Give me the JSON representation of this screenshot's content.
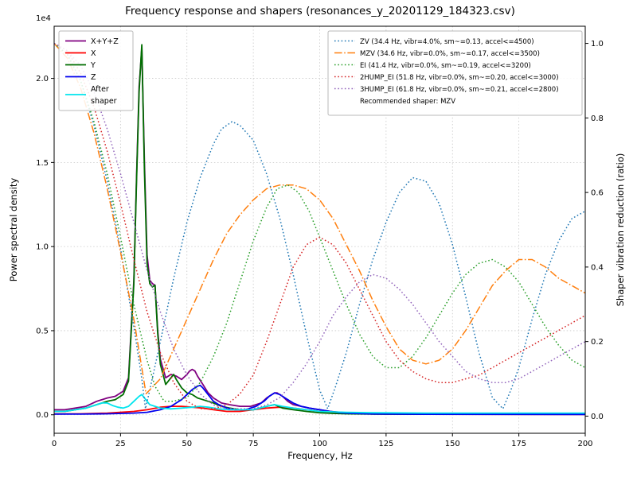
{
  "chart_data": {
    "type": "line",
    "title": "Frequency response and shapers (resonances_y_20201129_184323.csv)",
    "xlabel": "Frequency, Hz",
    "ylabel_left": "Power spectral density",
    "ylabel_right": "Shaper vibration reduction (ratio)",
    "y_left_offset_label": "1e4",
    "xlim": [
      0,
      200
    ],
    "ylim_left": [
      -0.11,
      2.31
    ],
    "ylim_right": [
      -0.046,
      1.046
    ],
    "grid": true,
    "x_ticks": [
      0,
      25,
      50,
      75,
      100,
      125,
      150,
      175,
      200
    ],
    "x_tick_labels": [
      "0",
      "25",
      "50",
      "75",
      "100",
      "125",
      "150",
      "175",
      "200"
    ],
    "y_left_ticks": [
      0.0,
      0.5,
      1.0,
      1.5,
      2.0
    ],
    "y_left_tick_labels": [
      "0.0",
      "0.5",
      "1.0",
      "1.5",
      "2.0"
    ],
    "y_right_ticks": [
      0.0,
      0.2,
      0.4,
      0.6,
      0.8,
      1.0
    ],
    "y_right_tick_labels": [
      "0.0",
      "0.2",
      "0.4",
      "0.6",
      "0.8",
      "1.0"
    ],
    "legend_right_note": "Recommended shaper: MZV",
    "recommended_shaper": "MZV",
    "series": [
      {
        "id": "xyz",
        "label": "X+Y+Z",
        "axis": "left",
        "color": "#800080",
        "dash": "solid",
        "width": 1.8,
        "x": [
          0,
          4,
          8,
          12,
          16,
          20,
          23,
          26,
          28,
          30,
          31,
          32,
          33,
          34,
          35,
          36,
          37,
          38,
          39,
          40,
          42,
          44,
          46,
          48,
          50,
          51,
          52,
          53,
          54,
          56,
          58,
          60,
          63,
          66,
          70,
          74,
          78,
          80,
          82,
          83,
          84,
          86,
          88,
          90,
          93,
          96,
          100,
          104,
          108,
          112,
          120,
          130,
          140,
          160,
          180,
          200
        ],
        "y": [
          0.03,
          0.03,
          0.04,
          0.05,
          0.08,
          0.1,
          0.11,
          0.14,
          0.22,
          0.8,
          1.4,
          1.95,
          2.18,
          1.5,
          0.95,
          0.8,
          0.78,
          0.77,
          0.5,
          0.33,
          0.22,
          0.24,
          0.23,
          0.21,
          0.24,
          0.26,
          0.27,
          0.26,
          0.23,
          0.18,
          0.13,
          0.1,
          0.07,
          0.06,
          0.05,
          0.05,
          0.07,
          0.1,
          0.12,
          0.13,
          0.13,
          0.11,
          0.08,
          0.06,
          0.05,
          0.04,
          0.03,
          0.02,
          0.015,
          0.01,
          0.008,
          0.006,
          0.005,
          0.004,
          0.004,
          0.004
        ]
      },
      {
        "id": "x",
        "label": "X",
        "axis": "left",
        "color": "#ff0000",
        "dash": "solid",
        "width": 1.8,
        "x": [
          0,
          10,
          20,
          30,
          35,
          40,
          44,
          48,
          52,
          56,
          60,
          65,
          70,
          75,
          80,
          85,
          90,
          95,
          100,
          105,
          110,
          120,
          140,
          200
        ],
        "y": [
          0.005,
          0.006,
          0.01,
          0.02,
          0.03,
          0.045,
          0.05,
          0.05,
          0.045,
          0.04,
          0.03,
          0.02,
          0.02,
          0.03,
          0.04,
          0.045,
          0.04,
          0.03,
          0.02,
          0.012,
          0.008,
          0.005,
          0.003,
          0.002
        ]
      },
      {
        "id": "y",
        "label": "Y",
        "axis": "left",
        "color": "#006e00",
        "dash": "solid",
        "width": 1.8,
        "x": [
          0,
          4,
          8,
          12,
          16,
          20,
          23,
          26,
          28,
          30,
          31,
          32,
          33,
          34,
          35,
          36,
          37,
          38,
          39,
          40,
          42,
          44,
          45,
          46,
          48,
          50,
          52,
          54,
          56,
          58,
          60,
          63,
          66,
          70,
          75,
          80,
          83,
          86,
          90,
          95,
          100,
          105,
          110,
          120,
          140,
          200
        ],
        "y": [
          0.02,
          0.02,
          0.03,
          0.04,
          0.06,
          0.08,
          0.09,
          0.12,
          0.2,
          0.78,
          1.38,
          1.92,
          2.2,
          1.45,
          0.9,
          0.78,
          0.76,
          0.77,
          0.48,
          0.3,
          0.18,
          0.22,
          0.24,
          0.21,
          0.16,
          0.13,
          0.12,
          0.1,
          0.09,
          0.08,
          0.07,
          0.05,
          0.04,
          0.03,
          0.03,
          0.05,
          0.06,
          0.04,
          0.03,
          0.02,
          0.012,
          0.008,
          0.006,
          0.004,
          0.003,
          0.003
        ]
      },
      {
        "id": "z",
        "label": "Z",
        "axis": "left",
        "color": "#0000ee",
        "dash": "solid",
        "width": 1.8,
        "x": [
          0,
          10,
          20,
          30,
          35,
          40,
          44,
          46,
          48,
          50,
          52,
          54,
          55,
          56,
          58,
          60,
          62,
          65,
          68,
          72,
          76,
          79,
          81,
          83,
          85,
          87,
          90,
          93,
          96,
          100,
          104,
          108,
          112,
          120,
          140,
          200
        ],
        "y": [
          0.004,
          0.004,
          0.006,
          0.01,
          0.015,
          0.03,
          0.05,
          0.07,
          0.09,
          0.12,
          0.15,
          0.17,
          0.175,
          0.16,
          0.12,
          0.08,
          0.06,
          0.04,
          0.03,
          0.03,
          0.05,
          0.08,
          0.11,
          0.13,
          0.12,
          0.1,
          0.07,
          0.05,
          0.04,
          0.03,
          0.02,
          0.012,
          0.008,
          0.005,
          0.003,
          0.002
        ]
      },
      {
        "id": "after-shaper",
        "label": "After\nshaper",
        "axis": "left",
        "color": "#00e5ee",
        "dash": "solid",
        "width": 1.8,
        "x": [
          0,
          4,
          8,
          12,
          15,
          18,
          20,
          22,
          24,
          26,
          28,
          30,
          32,
          33,
          34,
          36,
          38,
          40,
          44,
          48,
          52,
          55,
          58,
          62,
          66,
          70,
          75,
          80,
          83,
          86,
          90,
          95,
          100,
          110,
          120,
          140,
          160,
          180,
          200
        ],
        "y": [
          0.02,
          0.02,
          0.03,
          0.04,
          0.055,
          0.07,
          0.07,
          0.055,
          0.045,
          0.04,
          0.05,
          0.08,
          0.11,
          0.12,
          0.1,
          0.06,
          0.05,
          0.04,
          0.035,
          0.04,
          0.045,
          0.05,
          0.045,
          0.035,
          0.03,
          0.03,
          0.03,
          0.05,
          0.06,
          0.05,
          0.04,
          0.03,
          0.02,
          0.015,
          0.012,
          0.01,
          0.01,
          0.01,
          0.01
        ]
      },
      {
        "id": "zv",
        "label": "ZV (34.4 Hz, vibr=4.0%, sm~=0.13, accel<=4500)",
        "axis": "right",
        "color": "#1f77b4",
        "dash": "dotted",
        "width": 1.5,
        "x": [
          0,
          5,
          10,
          15,
          20,
          25,
          30,
          33,
          34.4,
          36,
          40,
          45,
          50,
          55,
          60,
          63,
          67,
          70,
          75,
          80,
          85,
          90,
          95,
          100,
          103,
          106,
          110,
          115,
          120,
          125,
          130,
          135,
          140,
          145,
          150,
          155,
          160,
          165,
          169,
          172,
          175,
          180,
          185,
          190,
          195,
          200
        ],
        "y": [
          1.0,
          0.97,
          0.9,
          0.78,
          0.63,
          0.45,
          0.24,
          0.1,
          0.02,
          0.07,
          0.2,
          0.37,
          0.52,
          0.64,
          0.73,
          0.77,
          0.79,
          0.78,
          0.74,
          0.65,
          0.53,
          0.38,
          0.22,
          0.07,
          0.02,
          0.08,
          0.17,
          0.3,
          0.42,
          0.52,
          0.6,
          0.64,
          0.63,
          0.57,
          0.46,
          0.32,
          0.17,
          0.05,
          0.02,
          0.07,
          0.13,
          0.26,
          0.38,
          0.47,
          0.53,
          0.55
        ]
      },
      {
        "id": "mzv",
        "label": "MZV (34.6 Hz, vibr=0.0%, sm~=0.17, accel<=3500)",
        "axis": "right",
        "color": "#ff7f0e",
        "dash": "dashdot",
        "width": 1.5,
        "x": [
          0,
          5,
          10,
          15,
          20,
          25,
          30,
          34.6,
          40,
          45,
          50,
          55,
          60,
          65,
          70,
          75,
          80,
          85,
          90,
          95,
          100,
          105,
          110,
          115,
          120,
          125,
          130,
          135,
          140,
          145,
          150,
          155,
          160,
          165,
          170,
          175,
          180,
          185,
          190,
          195,
          200
        ],
        "y": [
          1.0,
          0.96,
          0.88,
          0.76,
          0.61,
          0.44,
          0.26,
          0.06,
          0.1,
          0.18,
          0.26,
          0.34,
          0.42,
          0.49,
          0.54,
          0.58,
          0.61,
          0.62,
          0.62,
          0.61,
          0.58,
          0.53,
          0.46,
          0.39,
          0.31,
          0.24,
          0.18,
          0.15,
          0.14,
          0.15,
          0.18,
          0.23,
          0.29,
          0.35,
          0.39,
          0.42,
          0.42,
          0.4,
          0.37,
          0.35,
          0.33
        ]
      },
      {
        "id": "ei",
        "label": "EI (41.4 Hz, vibr=0.0%, sm~=0.19, accel<=3200)",
        "axis": "right",
        "color": "#2ca02c",
        "dash": "dotted",
        "width": 1.5,
        "x": [
          0,
          5,
          10,
          15,
          20,
          25,
          30,
          35,
          38,
          41.4,
          45,
          50,
          55,
          60,
          65,
          70,
          75,
          80,
          84,
          88,
          92,
          96,
          100,
          105,
          110,
          115,
          120,
          125,
          130,
          135,
          140,
          145,
          150,
          155,
          160,
          165,
          170,
          175,
          180,
          185,
          190,
          195,
          200
        ],
        "y": [
          1.0,
          0.97,
          0.9,
          0.79,
          0.65,
          0.48,
          0.3,
          0.15,
          0.08,
          0.04,
          0.04,
          0.05,
          0.09,
          0.16,
          0.25,
          0.36,
          0.47,
          0.56,
          0.61,
          0.62,
          0.6,
          0.55,
          0.48,
          0.39,
          0.3,
          0.22,
          0.16,
          0.13,
          0.13,
          0.16,
          0.21,
          0.27,
          0.33,
          0.38,
          0.41,
          0.42,
          0.4,
          0.36,
          0.3,
          0.24,
          0.19,
          0.15,
          0.13
        ]
      },
      {
        "id": "2hump-ei",
        "label": "2HUMP_EI (51.8 Hz, vibr=0.0%, sm~=0.20, accel<=3000)",
        "axis": "right",
        "color": "#d62728",
        "dash": "dotted",
        "width": 1.5,
        "x": [
          0,
          5,
          10,
          15,
          20,
          25,
          30,
          35,
          40,
          45,
          50,
          55,
          60,
          65,
          70,
          75,
          80,
          85,
          90,
          95,
          100,
          105,
          110,
          115,
          120,
          125,
          130,
          135,
          140,
          145,
          150,
          155,
          160,
          165,
          170,
          175,
          180,
          185,
          190,
          195,
          200
        ],
        "y": [
          1.0,
          0.98,
          0.92,
          0.83,
          0.71,
          0.57,
          0.42,
          0.28,
          0.17,
          0.09,
          0.04,
          0.02,
          0.02,
          0.03,
          0.06,
          0.11,
          0.2,
          0.3,
          0.4,
          0.46,
          0.48,
          0.46,
          0.41,
          0.34,
          0.27,
          0.2,
          0.15,
          0.12,
          0.1,
          0.09,
          0.09,
          0.1,
          0.11,
          0.13,
          0.15,
          0.17,
          0.19,
          0.21,
          0.23,
          0.25,
          0.27
        ]
      },
      {
        "id": "3hump-ei",
        "label": "3HUMP_EI (61.8 Hz, vibr=0.0%, sm~=0.21, accel<=2800)",
        "axis": "right",
        "color": "#9467bd",
        "dash": "dotted",
        "width": 1.5,
        "x": [
          0,
          5,
          10,
          15,
          20,
          25,
          30,
          35,
          40,
          45,
          50,
          55,
          60,
          65,
          70,
          75,
          80,
          85,
          90,
          95,
          100,
          105,
          110,
          115,
          120,
          125,
          130,
          135,
          140,
          145,
          150,
          155,
          160,
          165,
          170,
          175,
          180,
          185,
          190,
          195,
          200
        ],
        "y": [
          1.0,
          0.98,
          0.94,
          0.87,
          0.77,
          0.65,
          0.52,
          0.39,
          0.28,
          0.18,
          0.11,
          0.06,
          0.03,
          0.02,
          0.02,
          0.02,
          0.03,
          0.05,
          0.09,
          0.14,
          0.2,
          0.27,
          0.32,
          0.36,
          0.38,
          0.37,
          0.34,
          0.3,
          0.25,
          0.2,
          0.16,
          0.12,
          0.1,
          0.09,
          0.09,
          0.1,
          0.12,
          0.14,
          0.16,
          0.18,
          0.2
        ]
      }
    ]
  }
}
